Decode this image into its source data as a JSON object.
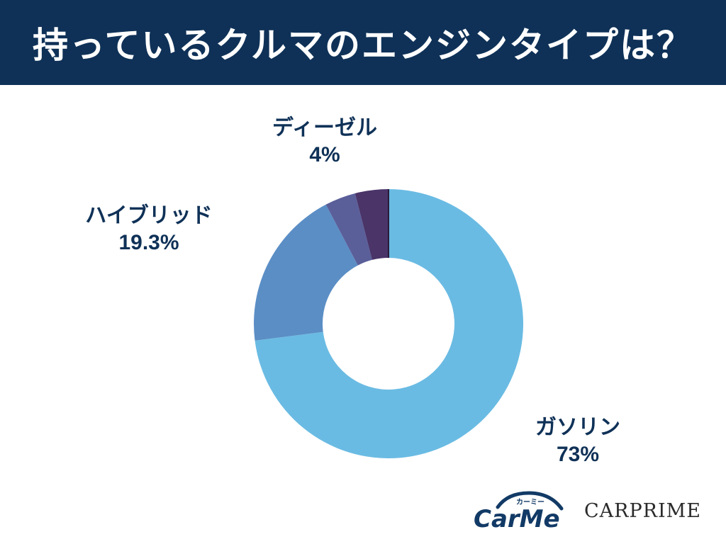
{
  "header": {
    "title": "持っているクルマのエンジンタイプは？"
  },
  "chart_data": {
    "type": "pie",
    "title": "持っているクルマのエンジンタイプは？",
    "series": [
      {
        "name": "ガソリン",
        "value": 73,
        "label": "73%",
        "color": "#6abbe3"
      },
      {
        "name": "ハイブリッド",
        "value": 19.3,
        "label": "19.3%",
        "color": "#5b8ec5"
      },
      {
        "name": "",
        "value": 3.7,
        "label": "",
        "color": "#5a5f9a"
      },
      {
        "name": "ディーゼル",
        "value": 4,
        "label": "4%",
        "color": "#4a3468"
      }
    ],
    "background_color": "#ffffff",
    "header_color": "#0f3157",
    "text_color": "#0f3157"
  },
  "labels": {
    "diesel": {
      "name": "ディーゼル",
      "pct": "4%"
    },
    "hybrid": {
      "name": "ハイブリッド",
      "pct": "19.3%"
    },
    "gasoline": {
      "name": "ガソリン",
      "pct": "73%"
    }
  },
  "logos": {
    "carme_top": "カーミー",
    "carme_main": "CarMe",
    "carprime": "CARPRIME"
  }
}
